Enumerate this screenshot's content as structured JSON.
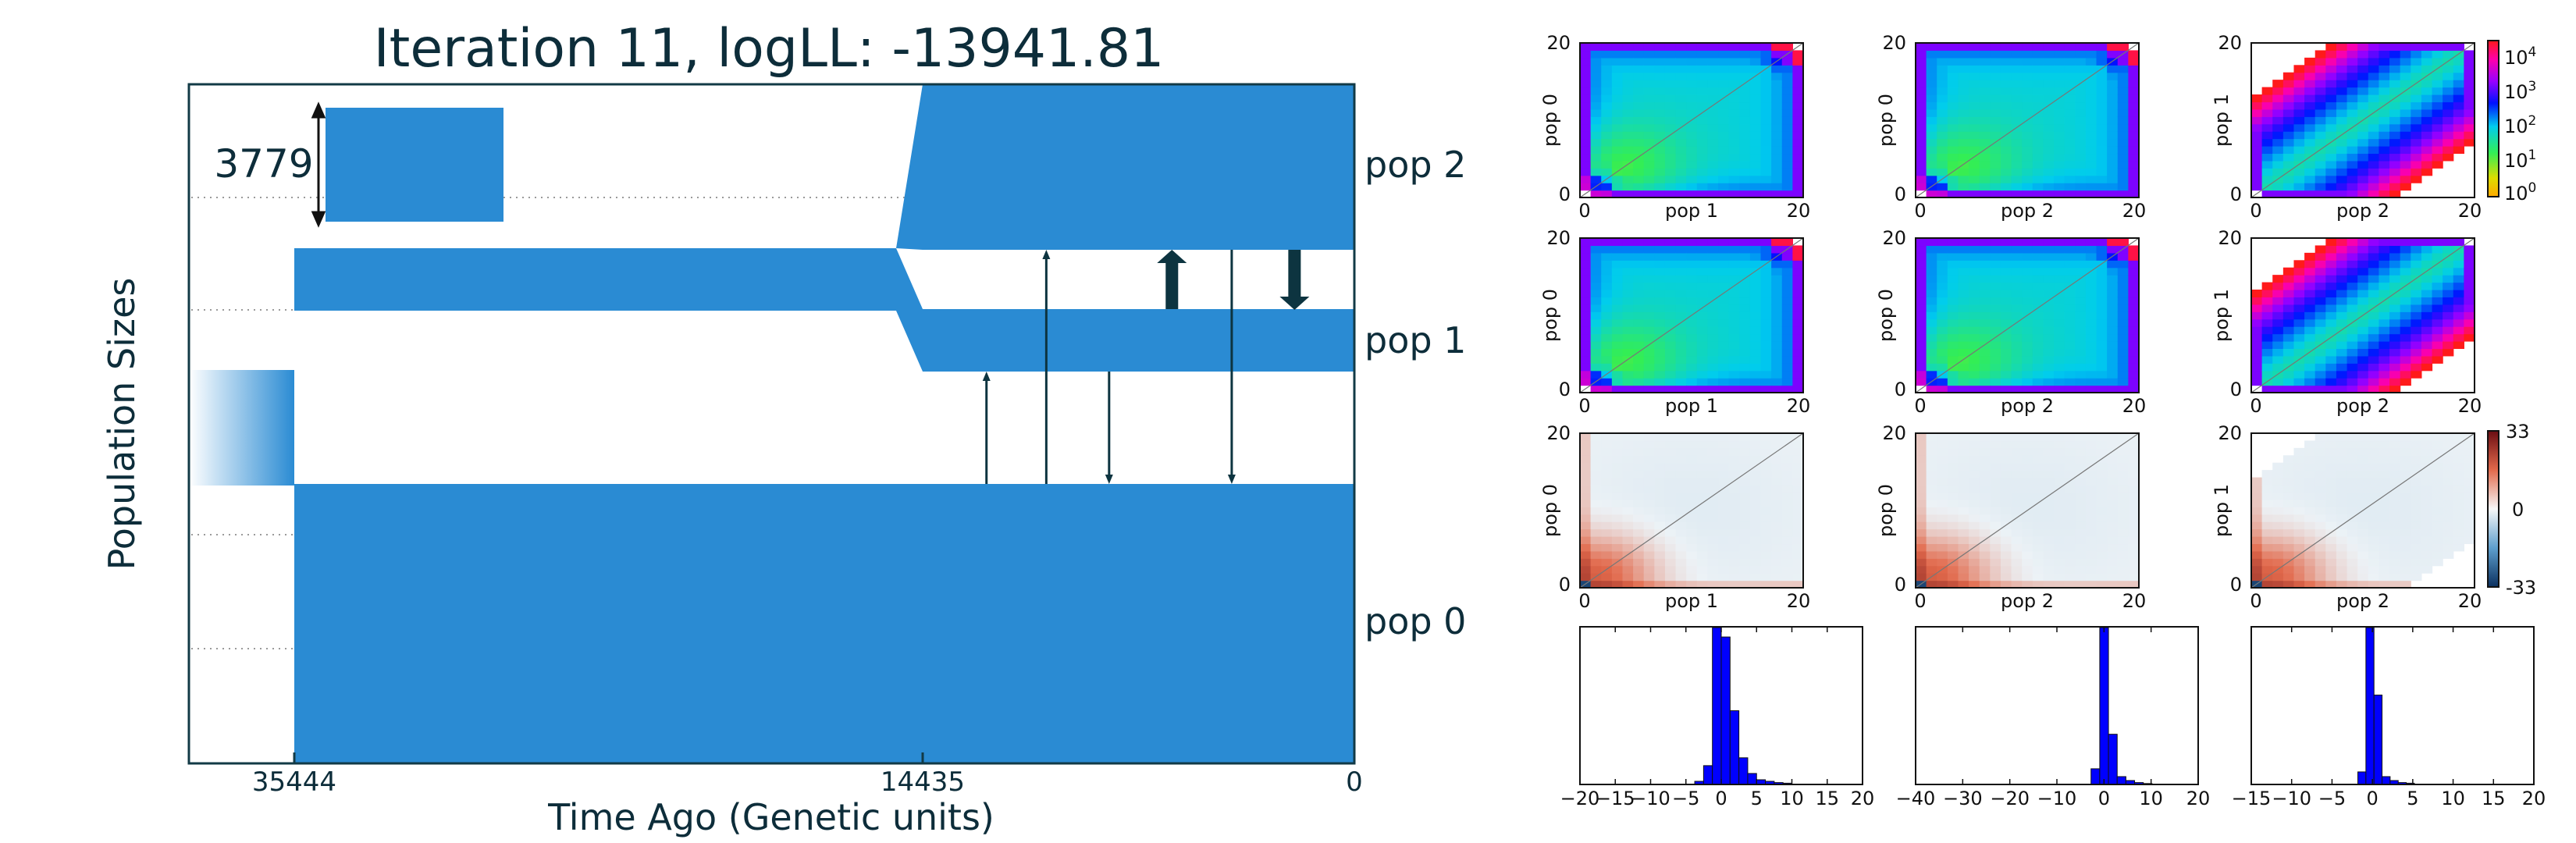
{
  "colors": {
    "pop_fill": "#2a8bd3",
    "frame": "#123a46",
    "arrow": "#0d3440",
    "hist_bar": "#0000ff",
    "text": "#0d2d3a"
  },
  "chart_data": [
    {
      "type": "demography",
      "title": "Iteration 11, logLL:  -13941.81",
      "xlabel": "Time Ago (Genetic units)",
      "ylabel": "Population Sizes",
      "x_ticks": [
        "35444",
        "14435",
        "0"
      ],
      "scale_label": "3779",
      "populations": [
        "pop 2",
        "pop 1",
        "pop 0"
      ],
      "split_times": [
        35444,
        14435
      ],
      "migration_pulses": [
        {
          "from": "pop 0",
          "to": "pop 1",
          "time": 12300
        },
        {
          "from": "pop 0",
          "to": "pop 2",
          "time": 10300
        },
        {
          "from": "pop 1",
          "to": "pop 0",
          "time": 8200
        },
        {
          "from": "pop 2",
          "to": "pop 0",
          "time": 4100
        }
      ],
      "migration_rates": [
        {
          "from": "pop 1",
          "to": "pop 2",
          "time": 6100
        },
        {
          "from": "pop 2",
          "to": "pop 1",
          "time": 2000
        }
      ]
    },
    {
      "type": "heatmap",
      "panels": [
        {
          "row": "observed",
          "xlabel": "pop 1",
          "ylabel": "pop 0",
          "ticks": [
            "0",
            "20"
          ]
        },
        {
          "row": "observed",
          "xlabel": "pop 2",
          "ylabel": "pop 0",
          "ticks": [
            "0",
            "20"
          ]
        },
        {
          "row": "observed",
          "xlabel": "pop 2",
          "ylabel": "pop 1",
          "ticks": [
            "0",
            "20"
          ]
        },
        {
          "row": "expected",
          "xlabel": "pop 1",
          "ylabel": "pop 0",
          "ticks": [
            "0",
            "20"
          ]
        },
        {
          "row": "expected",
          "xlabel": "pop 2",
          "ylabel": "pop 0",
          "ticks": [
            "0",
            "20"
          ]
        },
        {
          "row": "expected",
          "xlabel": "pop 2",
          "ylabel": "pop 1",
          "ticks": [
            "0",
            "20"
          ]
        },
        {
          "row": "residual",
          "xlabel": "pop 1",
          "ylabel": "pop 0",
          "ticks": [
            "0",
            "20"
          ]
        },
        {
          "row": "residual",
          "xlabel": "pop 2",
          "ylabel": "pop 0",
          "ticks": [
            "0",
            "20"
          ]
        },
        {
          "row": "residual",
          "xlabel": "pop 2",
          "ylabel": "pop 1",
          "ticks": [
            "0",
            "20"
          ]
        }
      ],
      "sfs_colorbar": {
        "scale": "log",
        "ticks": [
          "10^4",
          "10^3",
          "10^2",
          "10^1",
          "10^0"
        ]
      },
      "residual_colorbar": {
        "range": [
          -33,
          33
        ],
        "ticks": [
          "33",
          "0",
          "-33"
        ]
      }
    },
    {
      "type": "bar",
      "histograms": [
        {
          "xlim": [
            -20,
            20
          ],
          "ticks": [
            "−20",
            "−15",
            "−10",
            "−5",
            "0",
            "5",
            "10",
            "15",
            "20"
          ],
          "bins": [
            {
              "x0": -3.75,
              "x1": -2.5,
              "h": 0.02
            },
            {
              "x0": -2.5,
              "x1": -1.25,
              "h": 0.12
            },
            {
              "x0": -1.25,
              "x1": 0,
              "h": 1.0
            },
            {
              "x0": 0,
              "x1": 1.25,
              "h": 0.94
            },
            {
              "x0": 1.25,
              "x1": 2.5,
              "h": 0.47
            },
            {
              "x0": 2.5,
              "x1": 3.75,
              "h": 0.17
            },
            {
              "x0": 3.75,
              "x1": 5,
              "h": 0.07
            },
            {
              "x0": 5,
              "x1": 6.25,
              "h": 0.03
            },
            {
              "x0": 6.25,
              "x1": 7.5,
              "h": 0.02
            },
            {
              "x0": 7.5,
              "x1": 8.75,
              "h": 0.012
            },
            {
              "x0": 8.75,
              "x1": 10,
              "h": 0.008
            }
          ]
        },
        {
          "xlim": [
            -40,
            20
          ],
          "ticks": [
            "−40",
            "−30",
            "−20",
            "−10",
            "0",
            "10",
            "20"
          ],
          "bins": [
            {
              "x0": -2.75,
              "x1": -0.9,
              "h": 0.1
            },
            {
              "x0": -0.9,
              "x1": 0.95,
              "h": 1.0
            },
            {
              "x0": 0.95,
              "x1": 2.8,
              "h": 0.32
            },
            {
              "x0": 2.8,
              "x1": 4.65,
              "h": 0.05
            },
            {
              "x0": 4.65,
              "x1": 6.5,
              "h": 0.025
            },
            {
              "x0": 6.5,
              "x1": 8.35,
              "h": 0.012
            },
            {
              "x0": 8.35,
              "x1": 10.2,
              "h": 0.006
            }
          ]
        },
        {
          "xlim": [
            -15,
            20
          ],
          "ticks": [
            "−15",
            "−10",
            "−5",
            "0",
            "5",
            "10",
            "15",
            "20"
          ],
          "bins": [
            {
              "x0": -1.8,
              "x1": -0.8,
              "h": 0.08
            },
            {
              "x0": -0.8,
              "x1": 0.2,
              "h": 1.0
            },
            {
              "x0": 0.2,
              "x1": 1.2,
              "h": 0.57
            },
            {
              "x0": 1.2,
              "x1": 2.2,
              "h": 0.05
            },
            {
              "x0": 2.2,
              "x1": 3.2,
              "h": 0.025
            },
            {
              "x0": 3.2,
              "x1": 4.2,
              "h": 0.012
            },
            {
              "x0": 4.2,
              "x1": 5.2,
              "h": 0.008
            }
          ]
        }
      ]
    }
  ]
}
